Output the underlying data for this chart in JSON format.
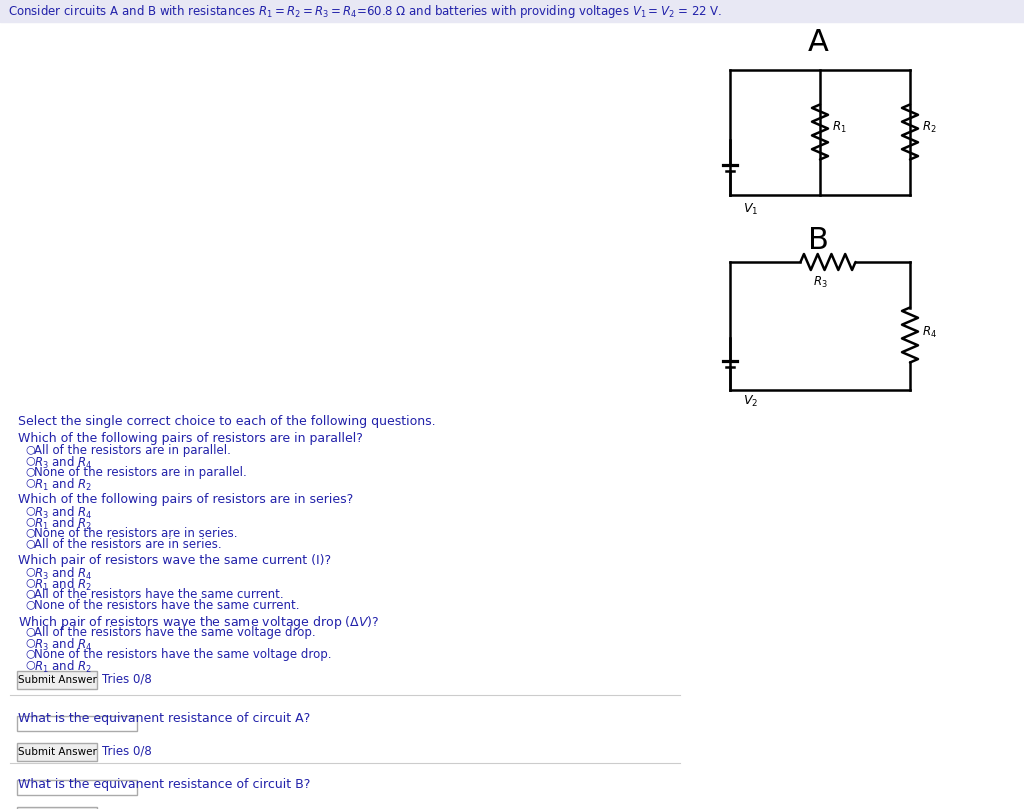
{
  "title_text": "Consider circuits A and B with resistances $R_1 = R_2 = R_3 = R_4$=60.8 Ω and batteries with providing voltages $V_1 = V_2$ = 22 V.",
  "bg_color": "#ffffff",
  "header_bg": "#e8e8f4",
  "blue": "#2222aa",
  "black": "#000000",
  "gray_btn_edge": "#aaaaaa",
  "gray_btn_face": "#eeeeee",
  "question_header": "Select the single correct choice to each of the following questions.",
  "q1_text": "Which of the following pairs of resistors are in parallel?",
  "q1_options": [
    "All of the resistors are in parallel.",
    "$R_3$ and $R_4$",
    "None of the resistors are in parallel.",
    "$R_1$ and $R_2$"
  ],
  "q2_text": "Which of the following pairs of resistors are in series?",
  "q2_options": [
    "$R_3$ and $R_4$",
    "$R_1$ and $R_2$",
    "None of the resistors are in series.",
    "All of the resistors are in series."
  ],
  "q3_text": "Which pair of resistors wave the same current (I)?",
  "q3_options": [
    "$R_3$ and $R_4$",
    "$R_1$ and $R_2$",
    "All of the resistors have the same current.",
    "None of the resistors have the same current."
  ],
  "q4_text": "Which pair of resistors wave the same voltage drop ($\\Delta V$)?",
  "q4_options": [
    "All of the resistors have the same voltage drop.",
    "$R_3$ and $R_4$",
    "None of the resistors have the same voltage drop.",
    "$R_1$ and $R_2$"
  ],
  "q_equiv_A": "What is the equivanent resistance of circuit A?",
  "q_equiv_B": "What is the equivanent resistance of circuit B?",
  "submit_text": "Submit Answer",
  "tries_text": "Tries 0/8"
}
